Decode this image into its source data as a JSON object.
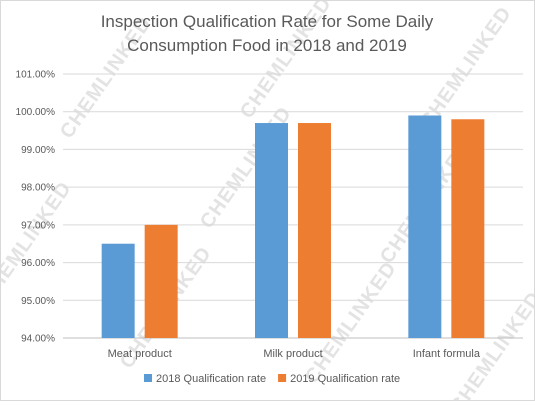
{
  "chart_data": {
    "type": "bar",
    "title": [
      "Inspection Qualification Rate for Some Daily",
      "Consumption Food in 2018 and 2019"
    ],
    "categories": [
      "Meat product",
      "Milk product",
      "Infant formula"
    ],
    "series": [
      {
        "name": "2018 Qualification rate",
        "values": [
          96.5,
          99.7,
          99.9
        ],
        "color": "#5b9bd5"
      },
      {
        "name": "2019 Qualification rate",
        "values": [
          97.0,
          99.7,
          99.8
        ],
        "color": "#ed7d31"
      }
    ],
    "ylim": [
      94,
      101
    ],
    "yticks": [
      94,
      95,
      96,
      97,
      98,
      99,
      100,
      101
    ],
    "ytick_labels": [
      "94.00%",
      "95.00%",
      "96.00%",
      "97.00%",
      "98.00%",
      "99.00%",
      "100.00%",
      "101.00%"
    ],
    "grid": true,
    "legend_position": "bottom",
    "xlabel": "",
    "ylabel": ""
  },
  "watermark": "CHEMLINKED"
}
